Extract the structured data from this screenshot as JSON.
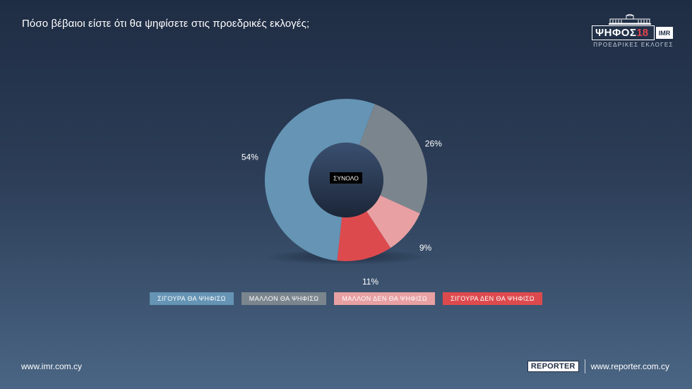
{
  "header": {
    "title": "Πόσο βέβαιοι είστε ότι θα ψηφίσετε στις προεδρικές εκλογές;"
  },
  "brand": {
    "logo_word": "ΨΗΦΟΣ",
    "logo_number": "18",
    "logo_partner": "IMR",
    "logo_subtitle": "ΠΡΟΕΔΡΙΚΕΣ ΕΚΛΟΓΕΣ"
  },
  "chart_data": {
    "type": "pie",
    "subtype": "donut",
    "center_label": "ΣΥΝΟΛΟ",
    "categories": [
      "ΣΙΓΟΥΡΑ ΘΑ ΨΗΦΙΣΩ",
      "ΜΑΛΛΟΝ ΘΑ ΨΗΦΙΣΩ",
      "ΜΑΛΛΟΝ ΔΕΝ ΘΑ ΨΗΦΙΣΩ",
      "ΣΙΓΟΥΡΑ ΔΕΝ ΘΑ ΨΗΦΙΣΩ"
    ],
    "values": [
      54,
      26,
      9,
      11
    ],
    "labels": [
      "54%",
      "26%",
      "9%",
      "11%"
    ],
    "colors": [
      "#6594b4",
      "#7b858d",
      "#e8a0a3",
      "#dd4a4e"
    ],
    "legend_position": "bottom"
  },
  "footer": {
    "left_url": "www.imr.com.cy",
    "reporter_logo": "REPORTER",
    "right_url": "www.reporter.com.cy"
  }
}
